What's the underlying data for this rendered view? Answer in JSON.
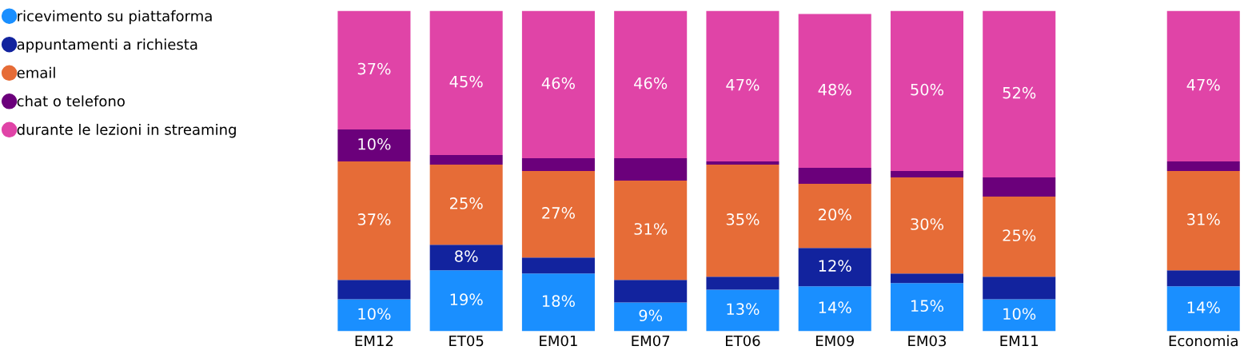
{
  "chart_data": {
    "type": "bar",
    "stacked": true,
    "categories": [
      "EM12",
      "ET05",
      "EM01",
      "EM07",
      "ET06",
      "EM09",
      "EM03",
      "EM11",
      null,
      "Economia"
    ],
    "ylim": [
      0,
      100
    ],
    "tick_labels": "x",
    "grid": false,
    "legend": "top left",
    "series": [
      {
        "name": "ricevimento su piattaforma",
        "color": "#1a8fff",
        "values": [
          10,
          19,
          18,
          9,
          13,
          14,
          15,
          10,
          null,
          14
        ],
        "value_labels": [
          "10%",
          "19%",
          "18%",
          "9%",
          "13%",
          "14%",
          "15%",
          "10%",
          null,
          "14%"
        ]
      },
      {
        "name": "appuntamenti a richiesta",
        "color": "#12239e",
        "values": [
          6,
          8,
          5,
          7,
          4,
          12,
          3,
          7,
          null,
          5
        ],
        "value_labels": [
          null,
          "8%",
          null,
          null,
          null,
          "12%",
          null,
          null,
          null,
          null
        ]
      },
      {
        "name": "email",
        "color": "#e66c37",
        "values": [
          37,
          25,
          27,
          31,
          35,
          20,
          30,
          25,
          null,
          31
        ],
        "value_labels": [
          "37%",
          "25%",
          "27%",
          "31%",
          "35%",
          "20%",
          "30%",
          "25%",
          null,
          "31%"
        ]
      },
      {
        "name": "chat o telefono",
        "color": "#6b007b",
        "values": [
          10,
          3,
          4,
          7,
          1,
          5,
          2,
          6,
          null,
          3
        ],
        "value_labels": [
          "10%",
          null,
          null,
          null,
          null,
          null,
          null,
          null,
          null,
          null
        ]
      },
      {
        "name": "durante le lezioni in streaming",
        "color": "#e044a7",
        "values": [
          37,
          45,
          46,
          46,
          47,
          48,
          50,
          52,
          null,
          47
        ],
        "value_labels": [
          "37%",
          "45%",
          "46%",
          "46%",
          "47%",
          "48%",
          "50%",
          "52%",
          null,
          "47%"
        ]
      }
    ]
  }
}
